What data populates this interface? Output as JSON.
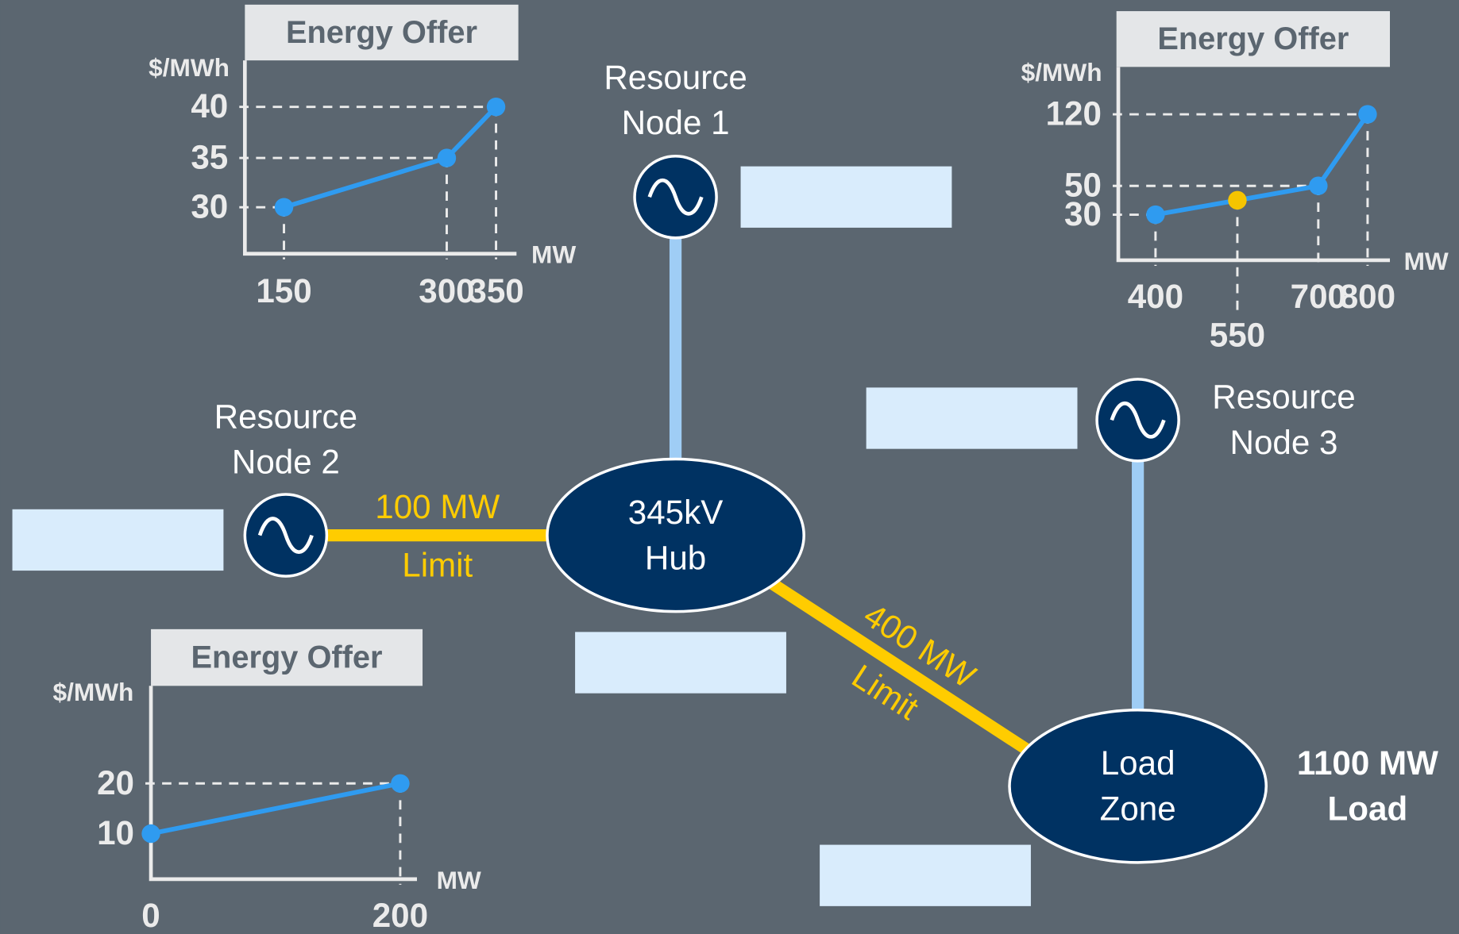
{
  "nodes": [
    {
      "label": [
        "Resource",
        "Node 1"
      ]
    },
    {
      "label": [
        "Resource",
        "Node 2"
      ]
    },
    {
      "label": [
        "Resource",
        "Node 3"
      ]
    }
  ],
  "hub": {
    "label": [
      "345kV",
      "Hub"
    ]
  },
  "load_zone": {
    "label": [
      "Load",
      "Zone"
    ],
    "load": [
      "1100 MW",
      "Load"
    ]
  },
  "lines": [
    {
      "label": [
        "100 MW",
        "Limit"
      ]
    },
    {
      "label": [
        "400 MW",
        "Limit"
      ]
    }
  ],
  "offers": [
    {
      "title": "Energy Offer",
      "y_unit": "$/MWh",
      "x_unit": "MW",
      "xticks": [
        150,
        300,
        350
      ],
      "yticks": [
        30,
        35,
        40
      ],
      "points": [
        {
          "x": 150,
          "y": 30
        },
        {
          "x": 300,
          "y": 35
        },
        {
          "x": 350,
          "y": 40
        }
      ],
      "color": "#2f9bf0"
    },
    {
      "title": "Energy Offer",
      "y_unit": "$/MWh",
      "x_unit": "MW",
      "xticks": [
        0,
        200
      ],
      "yticks": [
        10,
        20
      ],
      "points": [
        {
          "x": 0,
          "y": 10
        },
        {
          "x": 200,
          "y": 20
        }
      ],
      "color": "#2f9bf0"
    },
    {
      "title": "Energy Offer",
      "y_unit": "$/MWh",
      "x_unit": "MW",
      "xticks": [
        400,
        550,
        700,
        800
      ],
      "yticks": [
        30,
        50,
        120
      ],
      "points": [
        {
          "x": 400,
          "y": 30
        },
        {
          "x": 550,
          "y": 40,
          "color": "#f5c400"
        },
        {
          "x": 700,
          "y": 50
        },
        {
          "x": 800,
          "y": 120
        }
      ],
      "color": "#2f9bf0"
    }
  ]
}
